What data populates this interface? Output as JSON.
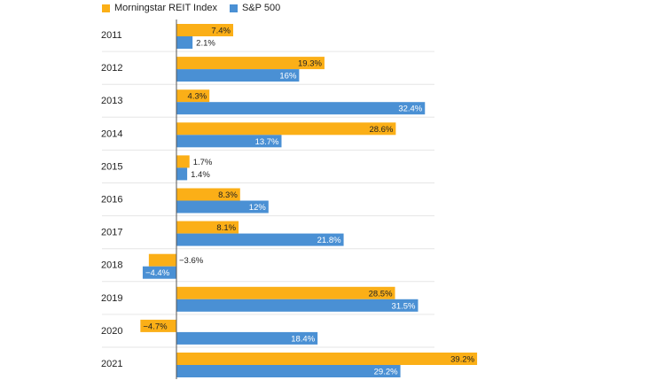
{
  "chart_data": {
    "type": "bar",
    "orientation": "horizontal",
    "categories": [
      "2011",
      "2012",
      "2013",
      "2014",
      "2015",
      "2016",
      "2017",
      "2018",
      "2019",
      "2020",
      "2021"
    ],
    "series": [
      {
        "name": "Morningstar REIT Index",
        "color": "#FBAF17",
        "values": [
          7.4,
          19.3,
          4.3,
          28.6,
          1.7,
          8.3,
          8.1,
          -3.6,
          28.5,
          -4.7,
          39.2
        ],
        "labels": [
          "7.4%",
          "19.3%",
          "4.3%",
          "28.6%",
          "1.7%",
          "8.3%",
          "8.1%",
          "−3.6%",
          "28.5%",
          "−4.7%",
          "39.2%"
        ]
      },
      {
        "name": "S&P 500",
        "color": "#4A90D4",
        "values": [
          2.1,
          16,
          32.4,
          13.7,
          1.4,
          12,
          21.8,
          -4.4,
          31.5,
          18.4,
          29.2
        ],
        "labels": [
          "2.1%",
          "16%",
          "32.4%",
          "13.7%",
          "1.4%",
          "12%",
          "21.8%",
          "−4.4%",
          "31.5%",
          "18.4%",
          "29.2%"
        ]
      }
    ],
    "xlim": [
      -5.5,
      40
    ],
    "legend_position": "top-left",
    "grid": "horizontal separators"
  }
}
